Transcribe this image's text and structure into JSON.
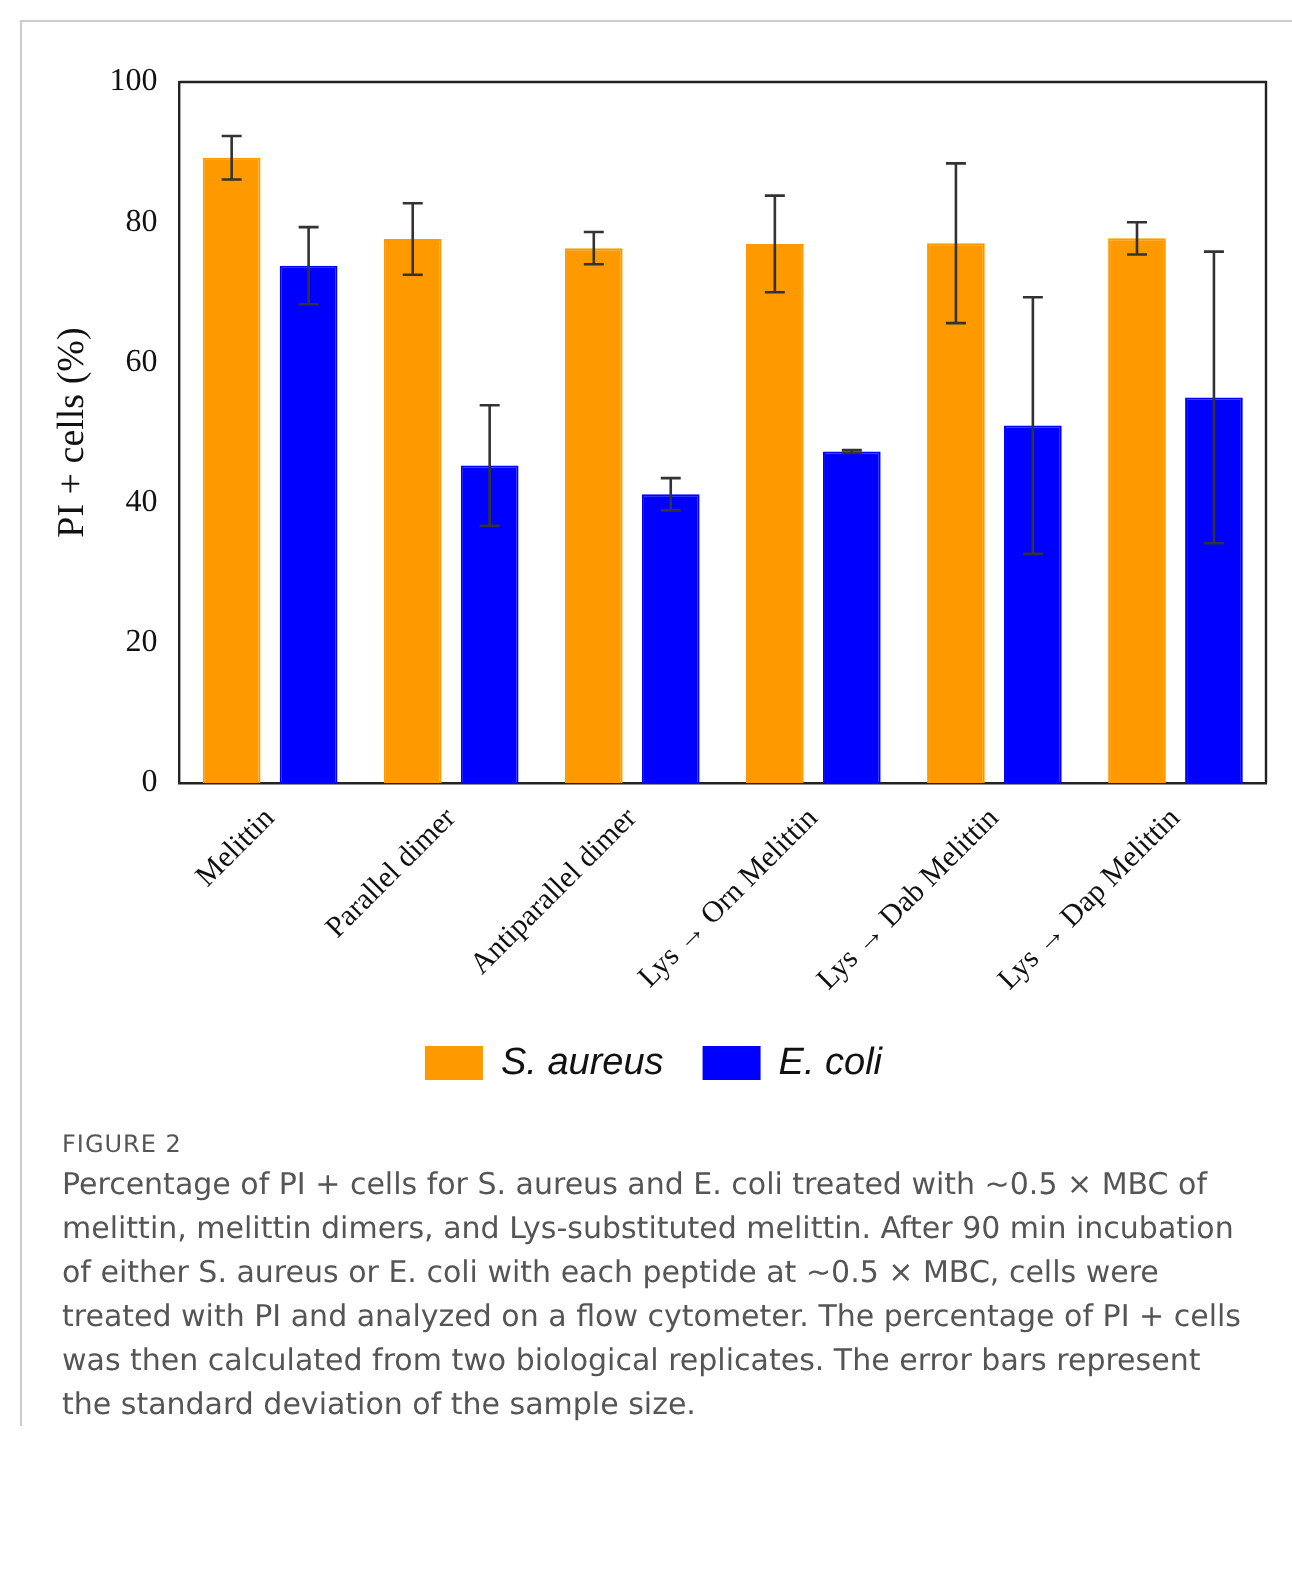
{
  "chart_data": {
    "type": "bar",
    "ylabel": "PI + cells (%)",
    "categories": [
      "Melittin",
      "Parallel dimer",
      "Antiparallel dimer",
      "Lys → Orn Melittin",
      "Lys → Dab Melittin",
      "Lys → Dap Melittin"
    ],
    "series": [
      {
        "name": "S. aureus",
        "color": "#ff9900",
        "values": [
          89.2,
          77.6,
          76.3,
          76.9,
          77,
          77.7
        ],
        "errors": [
          3.1,
          5.1,
          2.3,
          6.9,
          11.4,
          2.3
        ]
      },
      {
        "name": "E. coli",
        "color": "#0000ff",
        "values": [
          73.8,
          45.3,
          41.2,
          47.3,
          51,
          55
        ],
        "errors": [
          5.5,
          8.6,
          2.3,
          0.2,
          18.3,
          20.8
        ]
      }
    ],
    "ylim": [
      0,
      100
    ],
    "yticks": [
      0,
      20,
      40,
      60,
      80,
      100
    ],
    "grid": false,
    "legend": "bottom",
    "annotations": [
      "FIGURE 2",
      "Percentage of PI + cells for S. aureus and E. coli treated with ~0.5 × MBC of melittin, melittin dimers, and Lys-substituted melittin. After 90 min incubation of either S. aureus or E. coli with each peptide at ~0.5 × MBC, cells were treated with PI and analyzed on a flow cytometer. The percentage of PI + cells was then calculated from two biological replicates. The error bars represent the standard deviation of the sample size."
    ]
  }
}
